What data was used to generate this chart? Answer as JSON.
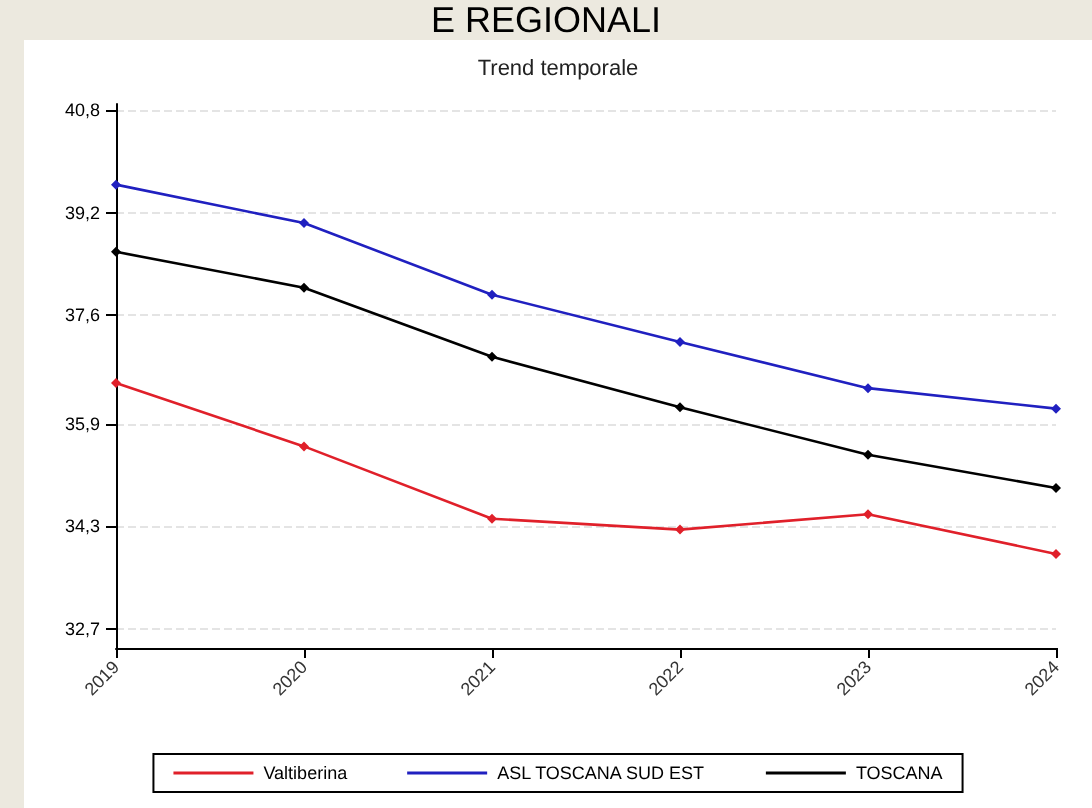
{
  "chart_data": {
    "type": "line",
    "title": "Trend temporale",
    "annotations": [
      "E REGIONALI"
    ],
    "categories": [
      "2019",
      "2020",
      "2021",
      "2022",
      "2023",
      "2024"
    ],
    "series": [
      {
        "name": "Valtiberina",
        "color": "#e0202a",
        "values": [
          36.54,
          35.55,
          34.42,
          34.25,
          34.49,
          33.87
        ]
      },
      {
        "name": "ASL TOSCANA SUD EST",
        "color": "#2020c0",
        "values": [
          39.64,
          39.04,
          37.92,
          37.18,
          36.46,
          36.14
        ]
      },
      {
        "name": "TOSCANA",
        "color": "#000000",
        "values": [
          38.59,
          38.03,
          36.95,
          36.16,
          35.42,
          34.9
        ]
      }
    ],
    "ylim": [
      32.4,
      40.9
    ],
    "yticks": [
      {
        "value": 32.7,
        "label": "32,7"
      },
      {
        "value": 34.3,
        "label": "34,3"
      },
      {
        "value": 35.9,
        "label": "35,9"
      },
      {
        "value": 37.6,
        "label": "37,6"
      },
      {
        "value": 39.2,
        "label": "39,2"
      },
      {
        "value": 40.8,
        "label": "40,8"
      }
    ],
    "grid": "y",
    "legend": "bottom",
    "marker": "diamond",
    "line_style": "solid"
  }
}
